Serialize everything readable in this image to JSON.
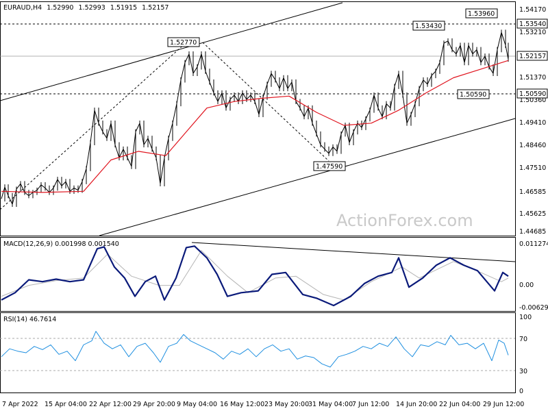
{
  "chart_data": [
    {
      "type": "candlestick",
      "panel": "price",
      "title": "EURAUD,H4",
      "ohlc": {
        "open": "1.52990",
        "high": "1.52993",
        "low": "1.51915",
        "close": "1.52157"
      },
      "ylim": [
        1.44,
        1.548
      ],
      "yticks": [
        "1.54170",
        "1.53210",
        "1.52157",
        "1.51370",
        "1.50360",
        "1.49410",
        "1.48460",
        "1.47510",
        "1.46585",
        "1.45625",
        "1.44685"
      ],
      "level_labels": [
        "1.53540",
        "1.50590",
        "1.52157"
      ],
      "annotations": [
        "1.53960",
        "1.53430",
        "1.52770",
        "1.50590",
        "1.47590"
      ],
      "watermark": "ActionForex.com",
      "close_series": [
        {
          "t": 0,
          "v": 1.457
        },
        {
          "t": 5,
          "v": 1.4625
        },
        {
          "t": 10,
          "v": 1.4585
        },
        {
          "t": 16,
          "v": 1.4545
        },
        {
          "t": 22,
          "v": 1.4615
        },
        {
          "t": 28,
          "v": 1.464
        },
        {
          "t": 34,
          "v": 1.46
        },
        {
          "t": 40,
          "v": 1.4585
        },
        {
          "t": 46,
          "v": 1.46
        },
        {
          "t": 52,
          "v": 1.461
        },
        {
          "t": 58,
          "v": 1.4635
        },
        {
          "t": 64,
          "v": 1.462
        },
        {
          "t": 70,
          "v": 1.46
        },
        {
          "t": 76,
          "v": 1.462
        },
        {
          "t": 82,
          "v": 1.466
        },
        {
          "t": 88,
          "v": 1.463
        },
        {
          "t": 94,
          "v": 1.465
        },
        {
          "t": 100,
          "v": 1.4605
        },
        {
          "t": 106,
          "v": 1.462
        },
        {
          "t": 112,
          "v": 1.461
        },
        {
          "t": 118,
          "v": 1.465
        },
        {
          "t": 124,
          "v": 1.471
        },
        {
          "t": 130,
          "v": 1.483
        },
        {
          "t": 136,
          "v": 1.498
        },
        {
          "t": 142,
          "v": 1.492
        },
        {
          "t": 148,
          "v": 1.488
        },
        {
          "t": 154,
          "v": 1.485
        },
        {
          "t": 160,
          "v": 1.492
        },
        {
          "t": 166,
          "v": 1.482
        },
        {
          "t": 172,
          "v": 1.476
        },
        {
          "t": 178,
          "v": 1.48
        },
        {
          "t": 184,
          "v": 1.476
        },
        {
          "t": 190,
          "v": 1.472
        },
        {
          "t": 196,
          "v": 1.488
        },
        {
          "t": 202,
          "v": 1.492
        },
        {
          "t": 208,
          "v": 1.482
        },
        {
          "t": 214,
          "v": 1.485
        },
        {
          "t": 220,
          "v": 1.48
        },
        {
          "t": 226,
          "v": 1.476
        },
        {
          "t": 232,
          "v": 1.464
        },
        {
          "t": 238,
          "v": 1.476
        },
        {
          "t": 244,
          "v": 1.485
        },
        {
          "t": 250,
          "v": 1.492
        },
        {
          "t": 256,
          "v": 1.501
        },
        {
          "t": 262,
          "v": 1.512
        },
        {
          "t": 268,
          "v": 1.52
        },
        {
          "t": 274,
          "v": 1.524
        },
        {
          "t": 280,
          "v": 1.515
        },
        {
          "t": 286,
          "v": 1.518
        },
        {
          "t": 292,
          "v": 1.524
        },
        {
          "t": 298,
          "v": 1.516
        },
        {
          "t": 304,
          "v": 1.511
        },
        {
          "t": 310,
          "v": 1.506
        },
        {
          "t": 316,
          "v": 1.502
        },
        {
          "t": 322,
          "v": 1.506
        },
        {
          "t": 328,
          "v": 1.499
        },
        {
          "t": 334,
          "v": 1.503
        },
        {
          "t": 340,
          "v": 1.505
        },
        {
          "t": 346,
          "v": 1.502
        },
        {
          "t": 352,
          "v": 1.506
        },
        {
          "t": 358,
          "v": 1.503
        },
        {
          "t": 364,
          "v": 1.505
        },
        {
          "t": 370,
          "v": 1.502
        },
        {
          "t": 376,
          "v": 1.496
        },
        {
          "t": 382,
          "v": 1.504
        },
        {
          "t": 388,
          "v": 1.51
        },
        {
          "t": 394,
          "v": 1.515
        },
        {
          "t": 400,
          "v": 1.512
        },
        {
          "t": 406,
          "v": 1.508
        },
        {
          "t": 412,
          "v": 1.513
        },
        {
          "t": 418,
          "v": 1.508
        },
        {
          "t": 424,
          "v": 1.511
        },
        {
          "t": 430,
          "v": 1.502
        },
        {
          "t": 436,
          "v": 1.499
        },
        {
          "t": 442,
          "v": 1.495
        },
        {
          "t": 448,
          "v": 1.499
        },
        {
          "t": 454,
          "v": 1.492
        },
        {
          "t": 460,
          "v": 1.487
        },
        {
          "t": 466,
          "v": 1.482
        },
        {
          "t": 472,
          "v": 1.48
        },
        {
          "t": 478,
          "v": 1.478
        },
        {
          "t": 484,
          "v": 1.481
        },
        {
          "t": 490,
          "v": 1.479
        },
        {
          "t": 496,
          "v": 1.487
        },
        {
          "t": 502,
          "v": 1.491
        },
        {
          "t": 508,
          "v": 1.483
        },
        {
          "t": 514,
          "v": 1.488
        },
        {
          "t": 520,
          "v": 1.492
        },
        {
          "t": 526,
          "v": 1.49
        },
        {
          "t": 532,
          "v": 1.494
        },
        {
          "t": 538,
          "v": 1.498
        },
        {
          "t": 544,
          "v": 1.505
        },
        {
          "t": 550,
          "v": 1.499
        },
        {
          "t": 556,
          "v": 1.495
        },
        {
          "t": 562,
          "v": 1.501
        },
        {
          "t": 568,
          "v": 1.499
        },
        {
          "t": 574,
          "v": 1.509
        },
        {
          "t": 580,
          "v": 1.515
        },
        {
          "t": 586,
          "v": 1.505
        },
        {
          "t": 592,
          "v": 1.492
        },
        {
          "t": 598,
          "v": 1.496
        },
        {
          "t": 604,
          "v": 1.501
        },
        {
          "t": 610,
          "v": 1.508
        },
        {
          "t": 616,
          "v": 1.512
        },
        {
          "t": 622,
          "v": 1.51
        },
        {
          "t": 628,
          "v": 1.514
        },
        {
          "t": 634,
          "v": 1.516
        },
        {
          "t": 640,
          "v": 1.52
        },
        {
          "t": 646,
          "v": 1.529
        },
        {
          "t": 652,
          "v": 1.53
        },
        {
          "t": 658,
          "v": 1.526
        },
        {
          "t": 664,
          "v": 1.524
        },
        {
          "t": 670,
          "v": 1.528
        },
        {
          "t": 676,
          "v": 1.52
        },
        {
          "t": 682,
          "v": 1.528
        },
        {
          "t": 688,
          "v": 1.524
        },
        {
          "t": 694,
          "v": 1.526
        },
        {
          "t": 700,
          "v": 1.52
        },
        {
          "t": 706,
          "v": 1.523
        },
        {
          "t": 712,
          "v": 1.518
        },
        {
          "t": 718,
          "v": 1.515
        },
        {
          "t": 724,
          "v": 1.526
        },
        {
          "t": 730,
          "v": 1.534
        },
        {
          "t": 736,
          "v": 1.528
        },
        {
          "t": 740,
          "v": 1.5216
        }
      ],
      "ma_series": [
        {
          "t": 0,
          "v": 1.4605
        },
        {
          "t": 60,
          "v": 1.46
        },
        {
          "t": 120,
          "v": 1.4605
        },
        {
          "t": 160,
          "v": 1.475
        },
        {
          "t": 200,
          "v": 1.479
        },
        {
          "t": 240,
          "v": 1.477
        },
        {
          "t": 270,
          "v": 1.488
        },
        {
          "t": 300,
          "v": 1.499
        },
        {
          "t": 340,
          "v": 1.502
        },
        {
          "t": 380,
          "v": 1.5035
        },
        {
          "t": 420,
          "v": 1.5045
        },
        {
          "t": 460,
          "v": 1.497
        },
        {
          "t": 500,
          "v": 1.491
        },
        {
          "t": 540,
          "v": 1.492
        },
        {
          "t": 580,
          "v": 1.498
        },
        {
          "t": 620,
          "v": 1.506
        },
        {
          "t": 660,
          "v": 1.513
        },
        {
          "t": 700,
          "v": 1.517
        },
        {
          "t": 740,
          "v": 1.521
        }
      ]
    },
    {
      "type": "line",
      "panel": "macd",
      "title": "MACD(12,26,9) 0.001998 0.001540",
      "ylim": [
        -0.0075,
        0.0125
      ],
      "yticks": [
        "0.011274",
        "0.00",
        "-0.006295"
      ],
      "macd_series": [
        {
          "t": 0,
          "v": -0.0045
        },
        {
          "t": 20,
          "v": -0.0025
        },
        {
          "t": 40,
          "v": 0.001
        },
        {
          "t": 60,
          "v": 0.0005
        },
        {
          "t": 80,
          "v": 0.0012
        },
        {
          "t": 100,
          "v": 0.0005
        },
        {
          "t": 120,
          "v": 0.001
        },
        {
          "t": 140,
          "v": 0.0095
        },
        {
          "t": 150,
          "v": 0.01
        },
        {
          "t": 165,
          "v": 0.0045
        },
        {
          "t": 180,
          "v": 0.0015
        },
        {
          "t": 195,
          "v": -0.0035
        },
        {
          "t": 210,
          "v": 0.0005
        },
        {
          "t": 225,
          "v": 0.002
        },
        {
          "t": 238,
          "v": -0.0045
        },
        {
          "t": 255,
          "v": 0.0015
        },
        {
          "t": 270,
          "v": 0.0098
        },
        {
          "t": 282,
          "v": 0.0102
        },
        {
          "t": 300,
          "v": 0.007
        },
        {
          "t": 315,
          "v": 0.0025
        },
        {
          "t": 330,
          "v": -0.0035
        },
        {
          "t": 350,
          "v": -0.0025
        },
        {
          "t": 375,
          "v": -0.002
        },
        {
          "t": 395,
          "v": 0.0025
        },
        {
          "t": 415,
          "v": 0.003
        },
        {
          "t": 440,
          "v": -0.003
        },
        {
          "t": 460,
          "v": -0.004
        },
        {
          "t": 485,
          "v": -0.006
        },
        {
          "t": 510,
          "v": -0.0035
        },
        {
          "t": 530,
          "v": 0.0
        },
        {
          "t": 550,
          "v": 0.002
        },
        {
          "t": 570,
          "v": 0.003
        },
        {
          "t": 580,
          "v": 0.007
        },
        {
          "t": 595,
          "v": -0.001
        },
        {
          "t": 615,
          "v": 0.0015
        },
        {
          "t": 635,
          "v": 0.005
        },
        {
          "t": 655,
          "v": 0.007
        },
        {
          "t": 675,
          "v": 0.005
        },
        {
          "t": 695,
          "v": 0.0035
        },
        {
          "t": 720,
          "v": -0.002
        },
        {
          "t": 732,
          "v": 0.003
        },
        {
          "t": 740,
          "v": 0.002
        }
      ],
      "signal_series": [
        {
          "t": 0,
          "v": -0.0035
        },
        {
          "t": 40,
          "v": -0.0005
        },
        {
          "t": 80,
          "v": 0.0008
        },
        {
          "t": 120,
          "v": 0.0015
        },
        {
          "t": 155,
          "v": 0.008
        },
        {
          "t": 190,
          "v": 0.002
        },
        {
          "t": 230,
          "v": -0.0005
        },
        {
          "t": 260,
          "v": -0.0005
        },
        {
          "t": 292,
          "v": 0.009
        },
        {
          "t": 330,
          "v": 0.002
        },
        {
          "t": 360,
          "v": -0.0025
        },
        {
          "t": 400,
          "v": 0.0015
        },
        {
          "t": 430,
          "v": 0.002
        },
        {
          "t": 470,
          "v": -0.003
        },
        {
          "t": 500,
          "v": -0.0045
        },
        {
          "t": 540,
          "v": 0.0005
        },
        {
          "t": 585,
          "v": 0.0045
        },
        {
          "t": 610,
          "v": 0.0015
        },
        {
          "t": 660,
          "v": 0.006
        },
        {
          "t": 700,
          "v": 0.003
        },
        {
          "t": 730,
          "v": 0.0005
        },
        {
          "t": 740,
          "v": 0.0015
        }
      ]
    },
    {
      "type": "line",
      "panel": "rsi",
      "title": "RSI(14) 46.7614",
      "ylim": [
        0,
        100
      ],
      "yticks": [
        "100",
        "70",
        "30",
        "0"
      ],
      "rsi_series": [
        {
          "t": 0,
          "v": 45
        },
        {
          "t": 12,
          "v": 55
        },
        {
          "t": 24,
          "v": 52
        },
        {
          "t": 36,
          "v": 50
        },
        {
          "t": 48,
          "v": 58
        },
        {
          "t": 60,
          "v": 54
        },
        {
          "t": 72,
          "v": 60
        },
        {
          "t": 84,
          "v": 48
        },
        {
          "t": 96,
          "v": 52
        },
        {
          "t": 108,
          "v": 40
        },
        {
          "t": 120,
          "v": 60
        },
        {
          "t": 132,
          "v": 65
        },
        {
          "t": 138,
          "v": 77
        },
        {
          "t": 150,
          "v": 62
        },
        {
          "t": 162,
          "v": 55
        },
        {
          "t": 174,
          "v": 60
        },
        {
          "t": 186,
          "v": 45
        },
        {
          "t": 198,
          "v": 58
        },
        {
          "t": 210,
          "v": 62
        },
        {
          "t": 222,
          "v": 50
        },
        {
          "t": 232,
          "v": 38
        },
        {
          "t": 244,
          "v": 58
        },
        {
          "t": 256,
          "v": 62
        },
        {
          "t": 266,
          "v": 73
        },
        {
          "t": 276,
          "v": 65
        },
        {
          "t": 288,
          "v": 60
        },
        {
          "t": 300,
          "v": 55
        },
        {
          "t": 312,
          "v": 50
        },
        {
          "t": 324,
          "v": 42
        },
        {
          "t": 336,
          "v": 52
        },
        {
          "t": 348,
          "v": 48
        },
        {
          "t": 360,
          "v": 55
        },
        {
          "t": 372,
          "v": 45
        },
        {
          "t": 384,
          "v": 55
        },
        {
          "t": 396,
          "v": 60
        },
        {
          "t": 408,
          "v": 52
        },
        {
          "t": 420,
          "v": 55
        },
        {
          "t": 432,
          "v": 42
        },
        {
          "t": 444,
          "v": 46
        },
        {
          "t": 456,
          "v": 44
        },
        {
          "t": 468,
          "v": 36
        },
        {
          "t": 480,
          "v": 32
        },
        {
          "t": 492,
          "v": 45
        },
        {
          "t": 504,
          "v": 48
        },
        {
          "t": 516,
          "v": 52
        },
        {
          "t": 528,
          "v": 58
        },
        {
          "t": 540,
          "v": 55
        },
        {
          "t": 552,
          "v": 62
        },
        {
          "t": 564,
          "v": 58
        },
        {
          "t": 576,
          "v": 70
        },
        {
          "t": 588,
          "v": 55
        },
        {
          "t": 600,
          "v": 45
        },
        {
          "t": 612,
          "v": 60
        },
        {
          "t": 624,
          "v": 58
        },
        {
          "t": 636,
          "v": 64
        },
        {
          "t": 648,
          "v": 60
        },
        {
          "t": 656,
          "v": 72
        },
        {
          "t": 668,
          "v": 60
        },
        {
          "t": 680,
          "v": 62
        },
        {
          "t": 692,
          "v": 55
        },
        {
          "t": 704,
          "v": 62
        },
        {
          "t": 716,
          "v": 40
        },
        {
          "t": 726,
          "v": 66
        },
        {
          "t": 734,
          "v": 62
        },
        {
          "t": 740,
          "v": 47
        }
      ]
    }
  ],
  "x_axis": {
    "labels": [
      "7 Apr 2022",
      "15 Apr 04:00",
      "22 Apr 12:00",
      "29 Apr 20:00",
      "9 May 04:00",
      "16 May 12:00",
      "23 May 20:00",
      "31 May 04:00",
      "7 Jun 12:00",
      "14 Jun 20:00",
      "22 Jun 04:00",
      "29 Jun 12:00"
    ]
  },
  "colors": {
    "price": "#000000",
    "ma": "#e0141e",
    "macd": "#0a1a7a",
    "signal": "#b5b5b5",
    "rsi": "#1e8fe0",
    "grid": "#999999"
  }
}
